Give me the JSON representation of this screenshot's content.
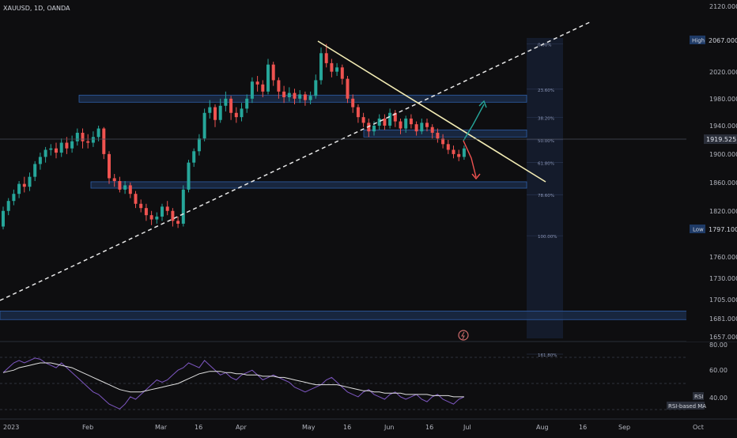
{
  "header": {
    "symbol_title": "XAUUSD, 1D, OANDA"
  },
  "colors": {
    "background": "#0e0e10",
    "up_candle": "#26a69a",
    "down_candle": "#ef5350",
    "zone_border": "#2f5ea8",
    "zone_fill": "#1c2f4d",
    "trendline_dashed": "#e8e8e8",
    "trendline_solid": "#f3ecb4",
    "arrow_up": "#26a69a",
    "arrow_down": "#ef5350",
    "rsi_line": "#7e57c2",
    "rsi_ma_line": "#e0e0e0",
    "fib_label": "#8a95b5",
    "price_tag_current": "#2a2e39"
  },
  "price_axis": {
    "ticks": [
      "2120.000",
      "2067.000",
      "2020.000",
      "1980.000",
      "1940.000",
      "1900.000",
      "1860.000",
      "1820.000",
      "1797.100",
      "1760.000",
      "1730.000",
      "1705.000",
      "1681.000",
      "1657.000"
    ],
    "high_label": "High",
    "high_value": "2067.000",
    "low_label": "Low",
    "low_value": "1797.100",
    "current_price": "1919.525"
  },
  "time_axis": {
    "labels": [
      "2023",
      "Feb",
      "Mar",
      "16",
      "Apr",
      "May",
      "16",
      "Jun",
      "16",
      "Jul",
      "Aug",
      "16",
      "Sep",
      "Oct"
    ]
  },
  "fib_levels": [
    "0.00%",
    "23.60%",
    "38.20%",
    "50.00%",
    "61.80%",
    "78.60%",
    "100.00%",
    "161.80%"
  ],
  "rsi_panel": {
    "ticks": [
      "80.00",
      "60.00",
      "40.00"
    ],
    "rsi_label": "RSI",
    "ma_label": "RSI-based MA"
  },
  "chart_data": {
    "type": "candlestick",
    "title": "XAUUSD, 1D, OANDA",
    "ylim": [
      1650,
      2125
    ],
    "x_range": [
      "2023-01",
      "2023-10"
    ],
    "candles": [
      {
        "o": 1810,
        "c": 1832,
        "h": 1838,
        "l": 1806
      },
      {
        "o": 1832,
        "c": 1846,
        "h": 1850,
        "l": 1826
      },
      {
        "o": 1846,
        "c": 1856,
        "h": 1862,
        "l": 1840
      },
      {
        "o": 1856,
        "c": 1870,
        "h": 1874,
        "l": 1850
      },
      {
        "o": 1870,
        "c": 1866,
        "h": 1880,
        "l": 1858
      },
      {
        "o": 1866,
        "c": 1880,
        "h": 1886,
        "l": 1860
      },
      {
        "o": 1880,
        "c": 1898,
        "h": 1902,
        "l": 1874
      },
      {
        "o": 1898,
        "c": 1908,
        "h": 1914,
        "l": 1890
      },
      {
        "o": 1908,
        "c": 1918,
        "h": 1922,
        "l": 1900
      },
      {
        "o": 1918,
        "c": 1920,
        "h": 1926,
        "l": 1910
      },
      {
        "o": 1920,
        "c": 1914,
        "h": 1928,
        "l": 1906
      },
      {
        "o": 1914,
        "c": 1928,
        "h": 1934,
        "l": 1908
      },
      {
        "o": 1928,
        "c": 1920,
        "h": 1936,
        "l": 1912
      },
      {
        "o": 1920,
        "c": 1930,
        "h": 1938,
        "l": 1914
      },
      {
        "o": 1930,
        "c": 1942,
        "h": 1948,
        "l": 1924
      },
      {
        "o": 1942,
        "c": 1930,
        "h": 1948,
        "l": 1920
      },
      {
        "o": 1930,
        "c": 1928,
        "h": 1940,
        "l": 1920
      },
      {
        "o": 1928,
        "c": 1936,
        "h": 1944,
        "l": 1922
      },
      {
        "o": 1936,
        "c": 1948,
        "h": 1952,
        "l": 1930
      },
      {
        "o": 1948,
        "c": 1912,
        "h": 1950,
        "l": 1905
      },
      {
        "o": 1912,
        "c": 1878,
        "h": 1916,
        "l": 1870
      },
      {
        "o": 1878,
        "c": 1874,
        "h": 1884,
        "l": 1866
      },
      {
        "o": 1874,
        "c": 1862,
        "h": 1880,
        "l": 1858
      },
      {
        "o": 1862,
        "c": 1868,
        "h": 1874,
        "l": 1856
      },
      {
        "o": 1868,
        "c": 1856,
        "h": 1872,
        "l": 1850
      },
      {
        "o": 1856,
        "c": 1842,
        "h": 1860,
        "l": 1836
      },
      {
        "o": 1842,
        "c": 1836,
        "h": 1848,
        "l": 1830
      },
      {
        "o": 1836,
        "c": 1826,
        "h": 1842,
        "l": 1818
      },
      {
        "o": 1826,
        "c": 1820,
        "h": 1832,
        "l": 1812
      },
      {
        "o": 1820,
        "c": 1824,
        "h": 1830,
        "l": 1814
      },
      {
        "o": 1824,
        "c": 1838,
        "h": 1842,
        "l": 1818
      },
      {
        "o": 1838,
        "c": 1832,
        "h": 1846,
        "l": 1826
      },
      {
        "o": 1832,
        "c": 1818,
        "h": 1836,
        "l": 1810
      },
      {
        "o": 1818,
        "c": 1814,
        "h": 1824,
        "l": 1808
      },
      {
        "o": 1814,
        "c": 1862,
        "h": 1868,
        "l": 1810
      },
      {
        "o": 1862,
        "c": 1900,
        "h": 1904,
        "l": 1858
      },
      {
        "o": 1900,
        "c": 1916,
        "h": 1920,
        "l": 1894
      },
      {
        "o": 1916,
        "c": 1934,
        "h": 1940,
        "l": 1910
      },
      {
        "o": 1934,
        "c": 1970,
        "h": 1976,
        "l": 1930
      },
      {
        "o": 1970,
        "c": 1978,
        "h": 1988,
        "l": 1962
      },
      {
        "o": 1978,
        "c": 1960,
        "h": 1982,
        "l": 1950
      },
      {
        "o": 1960,
        "c": 1980,
        "h": 1990,
        "l": 1956
      },
      {
        "o": 1980,
        "c": 1990,
        "h": 2000,
        "l": 1972
      },
      {
        "o": 1990,
        "c": 1970,
        "h": 1994,
        "l": 1960
      },
      {
        "o": 1970,
        "c": 1964,
        "h": 1978,
        "l": 1956
      },
      {
        "o": 1964,
        "c": 1976,
        "h": 1984,
        "l": 1958
      },
      {
        "o": 1976,
        "c": 1990,
        "h": 1996,
        "l": 1970
      },
      {
        "o": 1990,
        "c": 2014,
        "h": 2020,
        "l": 1984
      },
      {
        "o": 2014,
        "c": 2010,
        "h": 2022,
        "l": 2000
      },
      {
        "o": 2010,
        "c": 2000,
        "h": 2016,
        "l": 1992
      },
      {
        "o": 2000,
        "c": 2038,
        "h": 2046,
        "l": 1996
      },
      {
        "o": 2038,
        "c": 2016,
        "h": 2042,
        "l": 2008
      },
      {
        "o": 2016,
        "c": 2000,
        "h": 2020,
        "l": 1990
      },
      {
        "o": 2000,
        "c": 1992,
        "h": 2008,
        "l": 1984
      },
      {
        "o": 1992,
        "c": 1998,
        "h": 2006,
        "l": 1986
      },
      {
        "o": 1998,
        "c": 1990,
        "h": 2004,
        "l": 1982
      },
      {
        "o": 1990,
        "c": 1996,
        "h": 2002,
        "l": 1984
      },
      {
        "o": 1996,
        "c": 1988,
        "h": 2000,
        "l": 1980
      },
      {
        "o": 1988,
        "c": 1994,
        "h": 2000,
        "l": 1982
      },
      {
        "o": 1994,
        "c": 2016,
        "h": 2024,
        "l": 1990
      },
      {
        "o": 2016,
        "c": 2054,
        "h": 2062,
        "l": 2010
      },
      {
        "o": 2054,
        "c": 2040,
        "h": 2067,
        "l": 2034
      },
      {
        "o": 2040,
        "c": 2028,
        "h": 2046,
        "l": 2020
      },
      {
        "o": 2028,
        "c": 2034,
        "h": 2040,
        "l": 2022
      },
      {
        "o": 2034,
        "c": 2018,
        "h": 2038,
        "l": 2010
      },
      {
        "o": 2018,
        "c": 1990,
        "h": 2022,
        "l": 1984
      },
      {
        "o": 1990,
        "c": 1978,
        "h": 1996,
        "l": 1970
      },
      {
        "o": 1978,
        "c": 1964,
        "h": 1982,
        "l": 1956
      },
      {
        "o": 1964,
        "c": 1956,
        "h": 1970,
        "l": 1950
      },
      {
        "o": 1956,
        "c": 1944,
        "h": 1962,
        "l": 1936
      },
      {
        "o": 1944,
        "c": 1952,
        "h": 1958,
        "l": 1938
      },
      {
        "o": 1952,
        "c": 1962,
        "h": 1968,
        "l": 1946
      },
      {
        "o": 1962,
        "c": 1952,
        "h": 1968,
        "l": 1946
      },
      {
        "o": 1952,
        "c": 1970,
        "h": 1976,
        "l": 1948
      },
      {
        "o": 1970,
        "c": 1958,
        "h": 1974,
        "l": 1950
      },
      {
        "o": 1958,
        "c": 1948,
        "h": 1962,
        "l": 1940
      },
      {
        "o": 1948,
        "c": 1962,
        "h": 1966,
        "l": 1942
      },
      {
        "o": 1962,
        "c": 1954,
        "h": 1968,
        "l": 1948
      },
      {
        "o": 1954,
        "c": 1944,
        "h": 1958,
        "l": 1938
      },
      {
        "o": 1944,
        "c": 1956,
        "h": 1962,
        "l": 1940
      },
      {
        "o": 1956,
        "c": 1950,
        "h": 1962,
        "l": 1944
      },
      {
        "o": 1950,
        "c": 1942,
        "h": 1954,
        "l": 1934
      },
      {
        "o": 1942,
        "c": 1934,
        "h": 1948,
        "l": 1928
      },
      {
        "o": 1934,
        "c": 1926,
        "h": 1940,
        "l": 1920
      },
      {
        "o": 1926,
        "c": 1918,
        "h": 1932,
        "l": 1912
      },
      {
        "o": 1918,
        "c": 1912,
        "h": 1924,
        "l": 1906
      },
      {
        "o": 1912,
        "c": 1908,
        "h": 1918,
        "l": 1902
      },
      {
        "o": 1908,
        "c": 1920,
        "h": 1924,
        "l": 1904
      }
    ],
    "horizontal_zones": [
      {
        "top": 1995,
        "bottom": 1985
      },
      {
        "top": 1946,
        "bottom": 1936
      },
      {
        "top": 1873,
        "bottom": 1864
      },
      {
        "top": 1691,
        "bottom": 1679
      }
    ],
    "fib_retracement": {
      "from": 2067,
      "to": 1797.1
    },
    "rsi": {
      "ylim": [
        25,
        85
      ],
      "values": [
        62,
        66,
        70,
        72,
        70,
        72,
        74,
        73,
        70,
        68,
        66,
        70,
        66,
        62,
        58,
        54,
        50,
        46,
        44,
        40,
        36,
        34,
        32,
        36,
        42,
        40,
        44,
        48,
        52,
        56,
        54,
        56,
        60,
        64,
        66,
        70,
        68,
        66,
        72,
        68,
        64,
        60,
        62,
        58,
        56,
        60,
        62,
        64,
        60,
        56,
        58,
        60,
        58,
        56,
        54,
        50,
        48,
        46,
        48,
        50,
        52,
        56,
        58,
        54,
        50,
        46,
        44,
        42,
        46,
        48,
        44,
        42,
        40,
        44,
        46,
        42,
        40,
        42,
        44,
        40,
        38,
        42,
        44,
        40,
        38,
        36,
        40,
        42
      ],
      "ma_values": [
        62,
        63,
        64,
        66,
        67,
        68,
        69,
        70,
        70,
        70,
        69,
        68,
        67,
        66,
        64,
        62,
        60,
        58,
        56,
        54,
        52,
        50,
        48,
        47,
        46,
        46,
        46,
        47,
        48,
        49,
        50,
        51,
        52,
        53,
        55,
        57,
        59,
        61,
        62,
        63,
        63,
        63,
        62,
        62,
        61,
        61,
        60,
        60,
        60,
        59,
        59,
        59,
        58,
        58,
        57,
        56,
        55,
        54,
        53,
        52,
        52,
        52,
        52,
        52,
        51,
        50,
        49,
        48,
        47,
        47,
        46,
        46,
        45,
        45,
        45,
        45,
        44,
        44,
        44,
        44,
        44,
        43,
        43,
        43,
        43,
        42,
        42,
        42
      ]
    }
  }
}
